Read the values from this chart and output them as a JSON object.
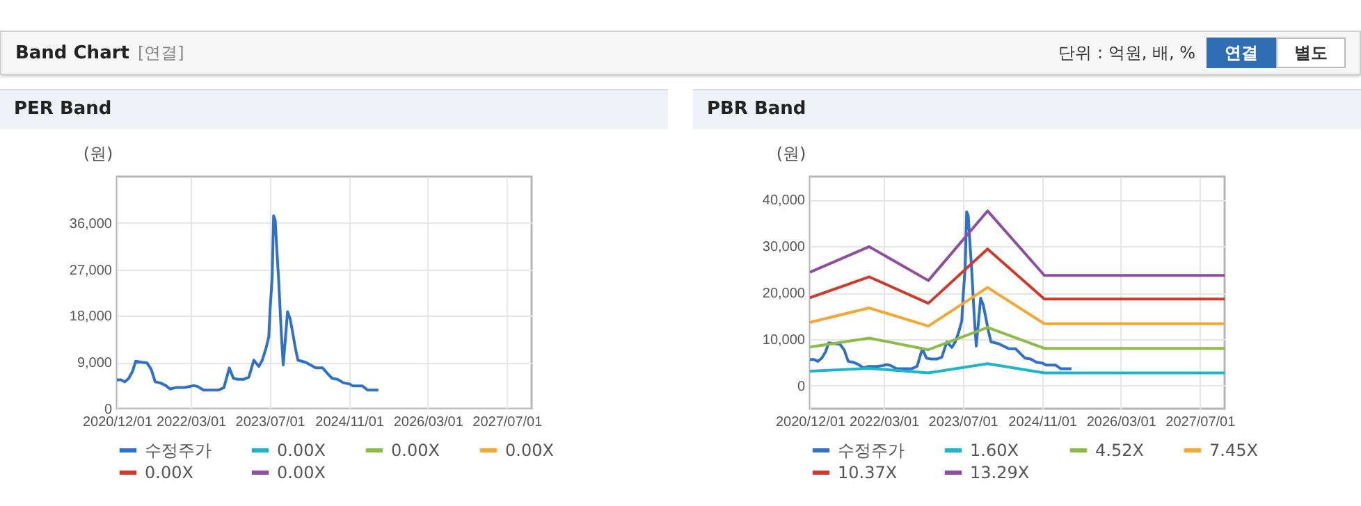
{
  "chart_data": [
    {
      "type": "other",
      "title": "Band Chart",
      "annotations": [
        "[연결]",
        "단위 : 억원, 배, %",
        "연결",
        "별도"
      ]
    },
    {
      "type": "line",
      "title": "PER Band",
      "ylabel": "(원)",
      "grid": true,
      "legend": "bottom",
      "xlim": [
        "2020-12-01",
        "2027-12-01"
      ],
      "xticks": [
        {
          "value": "2020-12-01",
          "label": "2020/12/01"
        },
        {
          "value": "2022-03-01",
          "label": "2022/03/01"
        },
        {
          "value": "2023-07-01",
          "label": "2023/07/01"
        },
        {
          "value": "2024-11-01",
          "label": "2024/11/01"
        },
        {
          "value": "2026-03-01",
          "label": "2026/03/01"
        },
        {
          "value": "2027-07-01",
          "label": "2027/07/01"
        }
      ],
      "ylim": [
        0,
        45000
      ],
      "yticks": [
        0,
        {
          "value": 9000,
          "label": "9,000"
        },
        {
          "value": 18000,
          "label": "18,000"
        },
        {
          "value": 27000,
          "label": "27,000"
        },
        {
          "value": 36000,
          "label": "36,000"
        }
      ],
      "series": [
        {
          "name": "수정주가",
          "color": "#3070c8",
          "x": [
            "2020-12-01",
            "2020-12-27",
            "2021-01-19",
            "2021-02-12",
            "2021-03-07",
            "2021-03-27",
            "2021-05-04",
            "2021-06-04",
            "2021-07-01",
            "2021-07-25",
            "2021-08-25",
            "2021-09-28",
            "2021-10-25",
            "2021-11-28",
            "2022-01-19",
            "2022-02-25",
            "2022-03-19",
            "2022-04-13",
            "2022-05-19",
            "2022-06-28",
            "2022-08-19",
            "2022-09-22",
            "2022-10-25",
            "2022-11-19",
            "2022-12-16",
            "2023-01-22",
            "2023-02-22",
            "2023-03-25",
            "2023-04-25",
            "2023-05-16",
            "2023-06-07",
            "2023-06-25",
            "2023-07-04",
            "2023-07-16",
            "2023-07-25",
            "2023-08-04",
            "2023-08-13",
            "2023-08-25",
            "2023-09-10",
            "2023-09-22",
            "2023-10-04",
            "2023-10-19",
            "2023-11-04",
            "2023-11-19",
            "2023-12-07",
            "2023-12-22",
            "2024-02-07",
            "2024-03-07",
            "2024-04-10",
            "2024-05-22",
            "2024-06-22",
            "2024-07-19",
            "2024-08-22",
            "2024-09-28",
            "2024-11-04",
            "2024-11-25",
            "2025-01-22",
            "2025-02-25",
            "2025-05-01"
          ],
          "values": [
            5600,
            5600,
            5200,
            5900,
            7200,
            9200,
            9000,
            8900,
            7600,
            5200,
            5000,
            4500,
            3800,
            4100,
            4100,
            4300,
            4500,
            4300,
            3600,
            3600,
            3600,
            4100,
            7900,
            5900,
            5700,
            5700,
            6100,
            9400,
            8200,
            9400,
            11600,
            13900,
            19600,
            25400,
            37400,
            36500,
            31200,
            25000,
            14800,
            8500,
            13000,
            18800,
            17400,
            14800,
            11600,
            9400,
            9000,
            8500,
            7900,
            7900,
            6800,
            5900,
            5700,
            5000,
            4800,
            4400,
            4400,
            3600,
            3600
          ]
        },
        {
          "name": "0.00X",
          "color": "#1fb5c9"
        },
        {
          "name": "0.00X",
          "color": "#8dbb4a"
        },
        {
          "name": "0.00X",
          "color": "#f5a733"
        },
        {
          "name": "0.00X",
          "color": "#d03a2b"
        },
        {
          "name": "0.00X",
          "color": "#8e4f9e"
        }
      ]
    },
    {
      "type": "line",
      "title": "PBR Band",
      "ylabel": "(원)",
      "grid": true,
      "legend": "bottom",
      "xlim": [
        "2020-12-01",
        "2027-12-01"
      ],
      "xticks": [
        {
          "value": "2020-12-01",
          "label": "2020/12/01"
        },
        {
          "value": "2022-03-01",
          "label": "2022/03/01"
        },
        {
          "value": "2023-07-01",
          "label": "2023/07/01"
        },
        {
          "value": "2024-11-01",
          "label": "2024/11/01"
        },
        {
          "value": "2026-03-01",
          "label": "2026/03/01"
        },
        {
          "value": "2027-07-01",
          "label": "2027/07/01"
        }
      ],
      "ylim": [
        -5000,
        45000
      ],
      "yticks": [
        0,
        {
          "value": 10000,
          "label": "10,000"
        },
        {
          "value": 20000,
          "label": "20,000"
        },
        {
          "value": 30000,
          "label": "30,000"
        },
        {
          "value": 40000,
          "label": "40,000"
        }
      ],
      "series": [
        {
          "name": "수정주가",
          "color": "#3070c8",
          "x": [
            "2020-12-01",
            "2020-12-27",
            "2021-01-19",
            "2021-02-12",
            "2021-03-07",
            "2021-03-27",
            "2021-05-04",
            "2021-06-04",
            "2021-07-01",
            "2021-07-25",
            "2021-08-25",
            "2021-09-28",
            "2021-10-25",
            "2021-11-28",
            "2022-01-19",
            "2022-02-25",
            "2022-03-19",
            "2022-04-13",
            "2022-05-19",
            "2022-06-28",
            "2022-08-19",
            "2022-09-22",
            "2022-10-25",
            "2022-11-19",
            "2022-12-16",
            "2023-01-22",
            "2023-02-22",
            "2023-03-25",
            "2023-04-25",
            "2023-05-16",
            "2023-06-07",
            "2023-06-25",
            "2023-07-04",
            "2023-07-16",
            "2023-07-25",
            "2023-08-04",
            "2023-08-13",
            "2023-08-25",
            "2023-09-10",
            "2023-09-22",
            "2023-10-04",
            "2023-10-19",
            "2023-11-04",
            "2023-11-19",
            "2023-12-07",
            "2023-12-22",
            "2024-02-07",
            "2024-03-07",
            "2024-04-10",
            "2024-05-22",
            "2024-06-22",
            "2024-07-19",
            "2024-08-22",
            "2024-09-28",
            "2024-11-04",
            "2024-11-25",
            "2025-01-22",
            "2025-02-25",
            "2025-05-01"
          ],
          "values": [
            5600,
            5600,
            5200,
            5900,
            7200,
            9200,
            9000,
            8900,
            7600,
            5200,
            5000,
            4500,
            3800,
            4100,
            4100,
            4300,
            4500,
            4300,
            3600,
            3600,
            3600,
            4100,
            7900,
            5900,
            5700,
            5700,
            6100,
            9400,
            8200,
            9400,
            11600,
            13900,
            19600,
            25400,
            37400,
            36500,
            31200,
            25000,
            14800,
            8500,
            13000,
            18800,
            17400,
            14800,
            11600,
            9400,
            9000,
            8500,
            7900,
            7900,
            6800,
            5900,
            5700,
            5000,
            4800,
            4400,
            4400,
            3600,
            3600
          ]
        },
        {
          "name": "1.60X",
          "color": "#1fb5c9",
          "x": [
            "2020-12-01",
            "2021-12-01",
            "2022-12-01",
            "2023-12-01",
            "2024-11-15",
            "2027-12-01"
          ],
          "values": [
            3100,
            3700,
            2700,
            4700,
            2700,
            2700
          ]
        },
        {
          "name": "4.52X",
          "color": "#8dbb4a",
          "x": [
            "2020-12-01",
            "2021-12-01",
            "2022-12-01",
            "2023-12-01",
            "2024-11-15",
            "2027-12-01"
          ],
          "values": [
            8300,
            10200,
            7700,
            12500,
            8000,
            8000
          ]
        },
        {
          "name": "7.45X",
          "color": "#f5a733",
          "x": [
            "2020-12-01",
            "2021-12-01",
            "2022-12-01",
            "2023-12-01",
            "2024-11-15",
            "2027-12-01"
          ],
          "values": [
            13600,
            16700,
            12800,
            21100,
            13300,
            13300
          ]
        },
        {
          "name": "10.37X",
          "color": "#d03a2b",
          "x": [
            "2020-12-01",
            "2021-12-01",
            "2022-12-01",
            "2023-12-01",
            "2024-11-15",
            "2027-12-01"
          ],
          "values": [
            18900,
            23400,
            17700,
            29400,
            18600,
            18600
          ]
        },
        {
          "name": "13.29X",
          "color": "#8e4f9e",
          "x": [
            "2020-12-01",
            "2021-12-01",
            "2022-12-01",
            "2023-12-01",
            "2024-11-15",
            "2027-12-01"
          ],
          "values": [
            24400,
            29900,
            22600,
            37600,
            23700,
            23700
          ]
        }
      ]
    }
  ]
}
